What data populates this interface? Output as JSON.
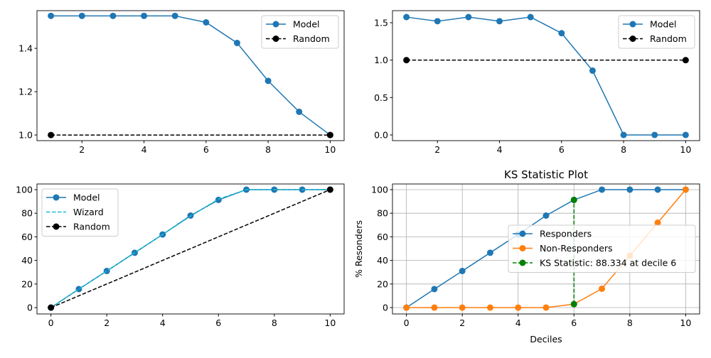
{
  "chart_data": [
    {
      "type": "line",
      "x": [
        1,
        2,
        3,
        4,
        5,
        6,
        7,
        8,
        9,
        10
      ],
      "series": [
        {
          "name": "Model",
          "values": [
            1.55,
            1.55,
            1.55,
            1.55,
            1.55,
            1.52,
            1.425,
            1.25,
            1.107,
            1.0
          ],
          "color": "#1f77b4",
          "style": "solid"
        },
        {
          "name": "Random",
          "values": [
            1.0,
            null,
            null,
            null,
            null,
            null,
            null,
            null,
            null,
            1.0
          ],
          "color": "#000000",
          "style": "dashed"
        }
      ],
      "xticks": [
        2,
        4,
        6,
        8,
        10
      ],
      "yticks": [
        1.0,
        1.2,
        1.4
      ],
      "xlim": [
        0.55,
        10.45
      ],
      "ylim": [
        0.974,
        1.574
      ],
      "legend": "top-right",
      "grid": false
    },
    {
      "type": "line",
      "x": [
        1,
        2,
        3,
        4,
        5,
        6,
        7,
        8,
        9,
        10
      ],
      "series": [
        {
          "name": "Model",
          "values": [
            1.575,
            1.52,
            1.575,
            1.52,
            1.575,
            1.36,
            0.86,
            0,
            0,
            0
          ],
          "color": "#1f77b4",
          "style": "solid"
        },
        {
          "name": "Random",
          "values": [
            1.0,
            null,
            null,
            null,
            null,
            null,
            null,
            null,
            null,
            1.0
          ],
          "color": "#000000",
          "style": "dashed"
        }
      ],
      "xticks": [
        2,
        4,
        6,
        8,
        10
      ],
      "yticks": [
        0.0,
        0.5,
        1.0,
        1.5
      ],
      "xlim": [
        0.55,
        10.45
      ],
      "ylim": [
        -0.076,
        1.661
      ],
      "legend": "top-right",
      "grid": false
    },
    {
      "type": "line",
      "x": [
        0,
        1,
        2,
        3,
        4,
        5,
        6,
        7,
        8,
        9,
        10
      ],
      "series": [
        {
          "name": "Model",
          "values": [
            0,
            15.7,
            31,
            46.5,
            62,
            78,
            91.3,
            100,
            100,
            100,
            100
          ],
          "color": "#1f77b4",
          "style": "solid"
        },
        {
          "name": "Wizard",
          "values": [
            0,
            15.7,
            31,
            46.5,
            62,
            77.5,
            92,
            100,
            100,
            100,
            100
          ],
          "color": "#17becf",
          "style": "dashed-nomarker"
        },
        {
          "name": "Random",
          "values": [
            0,
            null,
            null,
            null,
            null,
            null,
            null,
            null,
            null,
            null,
            100
          ],
          "color": "#000000",
          "style": "dashed"
        }
      ],
      "xticks": [
        0,
        2,
        4,
        6,
        8,
        10
      ],
      "yticks": [
        0,
        20,
        40,
        60,
        80,
        100
      ],
      "xlim": [
        -0.5,
        10.5
      ],
      "ylim": [
        -5.4,
        104.8
      ],
      "legend": "upper-left",
      "grid": false
    },
    {
      "type": "line",
      "title": "KS Statistic Plot",
      "xlabel": "Deciles",
      "ylabel": "% Resonders",
      "x": [
        0,
        1,
        2,
        3,
        4,
        5,
        6,
        7,
        8,
        9,
        10
      ],
      "series": [
        {
          "name": "Responders",
          "values": [
            0,
            15.7,
            31,
            46.5,
            62,
            78,
            91.3,
            100,
            100,
            100,
            100
          ],
          "color": "#1f77b4",
          "style": "solid"
        },
        {
          "name": "Non-Responders",
          "values": [
            0,
            0,
            0,
            0,
            0,
            0,
            2.95,
            16,
            44,
            72,
            100
          ],
          "color": "#ff7f0e",
          "style": "solid"
        },
        {
          "name": "KS Statistic: 88.334 at decile 6",
          "x": [
            6,
            6
          ],
          "values": [
            2.95,
            91.3
          ],
          "color": "#008000",
          "style": "dashed"
        }
      ],
      "xticks": [
        0,
        2,
        4,
        6,
        8,
        10
      ],
      "yticks": [
        0,
        20,
        40,
        60,
        80,
        100
      ],
      "xlim": [
        -0.5,
        10.5
      ],
      "ylim": [
        -5.4,
        104.8
      ],
      "legend": "center-right",
      "grid": true
    }
  ]
}
